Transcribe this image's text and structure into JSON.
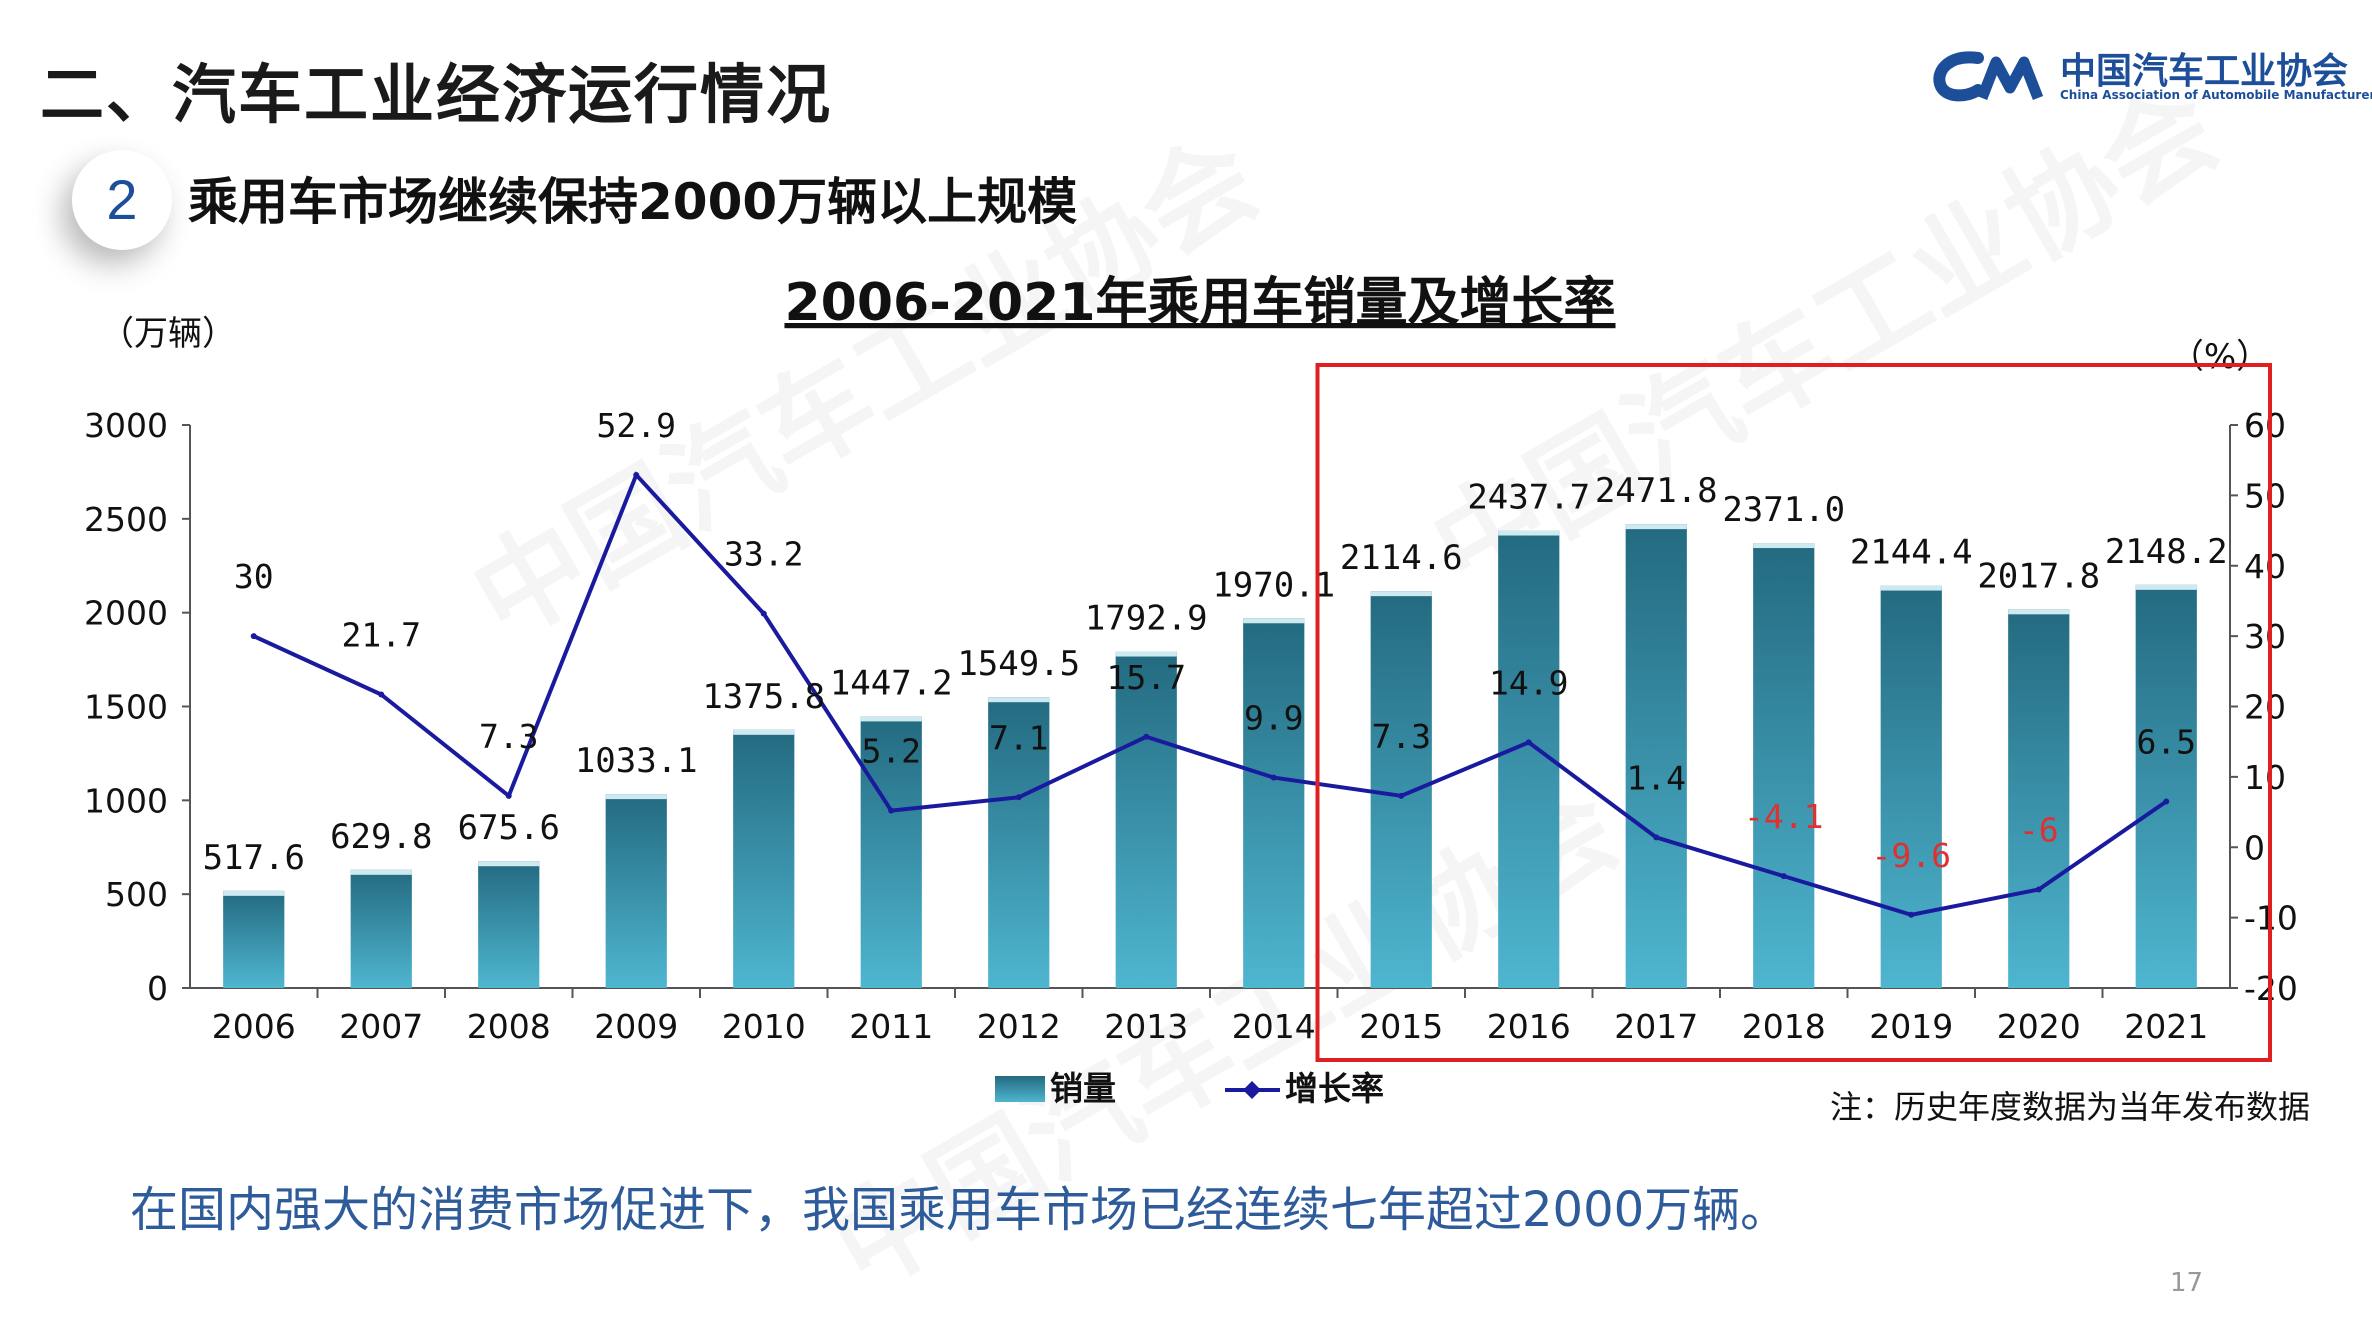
{
  "header": {
    "section_title": "二、汽车工业经济运行情况",
    "subtitle_number": "2",
    "subtitle": "乘用车市场继续保持2000万辆以上规模"
  },
  "logo": {
    "cn_name": "中国汽车工业协会",
    "en_name": "China Association of Automobile Manufacturers"
  },
  "footer": {
    "summary": "在国内强大的消费市场促进下，我国乘用车市场已经连续七年超过2000万辆。",
    "page_number": "17"
  },
  "chart_data": {
    "type": "bar",
    "title": "2006-2021年乘用车销量及增长率",
    "ylabel_left": "（万辆）",
    "ylabel_right": "（%）",
    "note": "注：历史年度数据为当年发布数据",
    "categories": [
      "2006",
      "2007",
      "2008",
      "2009",
      "2010",
      "2011",
      "2012",
      "2013",
      "2014",
      "2015",
      "2016",
      "2017",
      "2018",
      "2019",
      "2020",
      "2021"
    ],
    "ylim_left": [
      0,
      3000
    ],
    "yticks_left": [
      "0",
      "500",
      "1000",
      "1500",
      "2000",
      "2500",
      "3000"
    ],
    "ylim_right": [
      -20,
      60
    ],
    "yticks_right": [
      "-20",
      "-10",
      "0",
      "10",
      "20",
      "30",
      "40",
      "50",
      "60"
    ],
    "series": [
      {
        "name": "销量",
        "type": "bar",
        "values": [
          517.6,
          629.8,
          675.6,
          1033.1,
          1375.8,
          1447.2,
          1549.5,
          1792.9,
          1970.1,
          2114.6,
          2437.7,
          2471.8,
          2371.0,
          2144.4,
          2017.8,
          2148.2
        ],
        "labels": [
          "517.6",
          "629.8",
          "675.6",
          "1033.1",
          "1375.8",
          "1447.2",
          "1549.5",
          "1792.9",
          "1970.1",
          "2114.6",
          "2437.7",
          "2471.8",
          "2371.0",
          "2144.4",
          "2017.8",
          "2148.2"
        ],
        "color": "#3a9cb8"
      },
      {
        "name": "增长率",
        "type": "line",
        "values": [
          30,
          21.7,
          7.3,
          52.9,
          33.2,
          5.2,
          7.1,
          15.7,
          9.9,
          7.3,
          14.9,
          1.4,
          -4.1,
          -9.6,
          -6,
          6.5
        ],
        "labels": [
          "30",
          "21.7",
          "7.3",
          "52.9",
          "33.2",
          "5.2",
          "7.1",
          "15.7",
          "9.9",
          "7.3",
          "14.9",
          "1.4",
          "-4.1",
          "-9.6",
          "-6",
          "6.5"
        ],
        "color": "#1a1a9e",
        "negative_label_color": "#e03030"
      }
    ],
    "highlight_color": "#e02020",
    "highlight_range": [
      "2015",
      "2021"
    ],
    "legend_position": "bottom-center"
  }
}
